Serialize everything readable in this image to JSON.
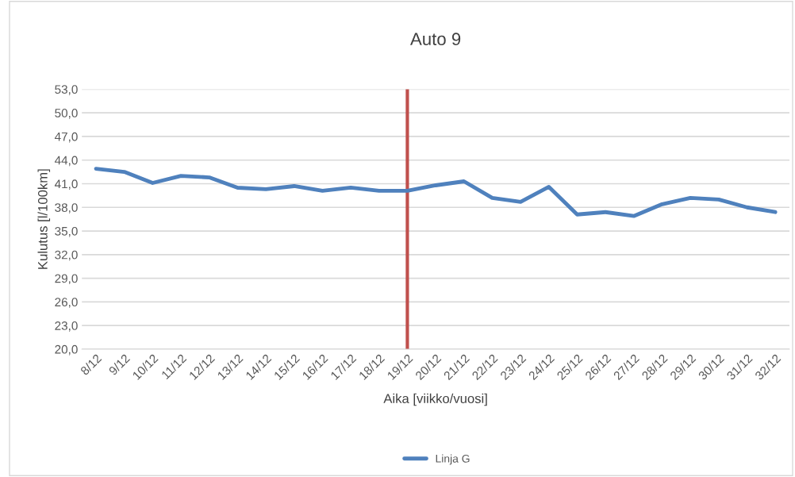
{
  "chart_data": {
    "type": "line",
    "title": "Auto 9",
    "xlabel": "Aika [viikko/vuosi]",
    "ylabel": "Kulutus [l/100km]",
    "categories": [
      "8/12",
      "9/12",
      "10/12",
      "11/12",
      "12/12",
      "13/12",
      "14/12",
      "15/12",
      "16/12",
      "17/12",
      "18/12",
      "19/12",
      "20/12",
      "21/12",
      "22/12",
      "23/12",
      "24/12",
      "25/12",
      "26/12",
      "27/12",
      "28/12",
      "29/12",
      "30/12",
      "31/12",
      "32/12"
    ],
    "series": [
      {
        "name": "Linja G",
        "color": "#4f81bd",
        "values": [
          42.9,
          42.5,
          41.1,
          42.0,
          41.8,
          40.5,
          40.3,
          40.7,
          40.1,
          40.5,
          40.1,
          40.1,
          40.8,
          41.3,
          39.2,
          38.7,
          40.6,
          37.1,
          37.4,
          36.9,
          38.4,
          39.2,
          39.0,
          38.0,
          37.4
        ]
      }
    ],
    "ylim": [
      20,
      53
    ],
    "yticks": [
      {
        "value": 20,
        "label": "20,0"
      },
      {
        "value": 23,
        "label": "23,0"
      },
      {
        "value": 26,
        "label": "26,0"
      },
      {
        "value": 29,
        "label": "29,0"
      },
      {
        "value": 32,
        "label": "32,0"
      },
      {
        "value": 35,
        "label": "35,0"
      },
      {
        "value": 38,
        "label": "38,0"
      },
      {
        "value": 41,
        "label": "41,0"
      },
      {
        "value": 44,
        "label": "44,0"
      },
      {
        "value": 47,
        "label": "47,0"
      },
      {
        "value": 50,
        "label": "50,0"
      },
      {
        "value": 53,
        "label": "53,0"
      }
    ],
    "ref_lines": [
      {
        "axis": "x",
        "value": "19/12",
        "color": "#c0504d"
      }
    ],
    "grid": "y",
    "legend": "bottom",
    "marker": "none",
    "line_style": "solid"
  }
}
